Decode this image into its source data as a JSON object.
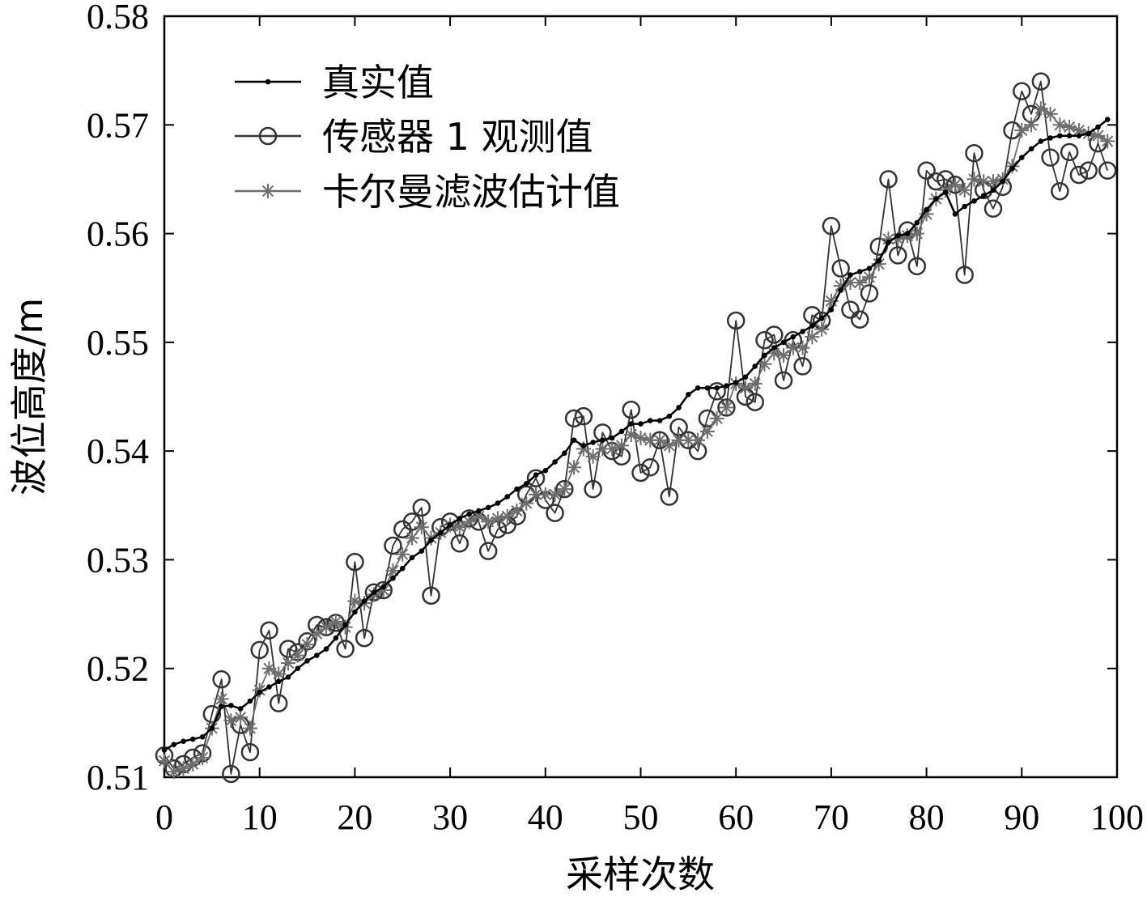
{
  "chart_data": {
    "type": "line",
    "xlabel": "采样次数",
    "ylabel": "波位高度/m",
    "xlim": [
      0,
      100
    ],
    "ylim": [
      0.51,
      0.58
    ],
    "xticks": [
      "0",
      "10",
      "20",
      "30",
      "40",
      "50",
      "60",
      "70",
      "80",
      "90",
      "100"
    ],
    "yticks": [
      "0.51",
      "0.52",
      "0.53",
      "0.54",
      "0.55",
      "0.56",
      "0.57",
      "0.58"
    ],
    "legend_position": "top-left",
    "grid": false,
    "x": [
      0,
      1,
      2,
      3,
      4,
      5,
      6,
      7,
      8,
      9,
      10,
      11,
      12,
      13,
      14,
      15,
      16,
      17,
      18,
      19,
      20,
      21,
      22,
      23,
      24,
      25,
      26,
      27,
      28,
      29,
      30,
      31,
      32,
      33,
      34,
      35,
      36,
      37,
      38,
      39,
      40,
      41,
      42,
      43,
      44,
      45,
      46,
      47,
      48,
      49,
      50,
      51,
      52,
      53,
      54,
      55,
      56,
      57,
      58,
      59,
      60,
      61,
      62,
      63,
      64,
      65,
      66,
      67,
      68,
      69,
      70,
      71,
      72,
      73,
      74,
      75,
      76,
      77,
      78,
      79,
      80,
      81,
      82,
      83,
      84,
      85,
      86,
      87,
      88,
      89,
      90,
      91,
      92,
      93,
      94,
      95,
      96,
      97,
      98,
      99
    ],
    "series": [
      {
        "name": "真实值",
        "color": "#000000",
        "marker": "dot",
        "values": [
          0.5125,
          0.513,
          0.5133,
          0.5135,
          0.5137,
          0.5145,
          0.5165,
          0.5166,
          0.5163,
          0.517,
          0.5178,
          0.5183,
          0.5188,
          0.5192,
          0.52,
          0.5207,
          0.5212,
          0.5218,
          0.5228,
          0.524,
          0.5252,
          0.5262,
          0.527,
          0.5275,
          0.5283,
          0.5292,
          0.5302,
          0.5308,
          0.5318,
          0.5325,
          0.5332,
          0.5338,
          0.5342,
          0.5345,
          0.5348,
          0.5352,
          0.5358,
          0.5365,
          0.537,
          0.5378,
          0.5382,
          0.539,
          0.5398,
          0.541,
          0.5405,
          0.5408,
          0.541,
          0.5412,
          0.5418,
          0.5425,
          0.5425,
          0.5428,
          0.5428,
          0.5432,
          0.544,
          0.5452,
          0.5458,
          0.5458,
          0.5458,
          0.546,
          0.5463,
          0.5468,
          0.5478,
          0.5488,
          0.5495,
          0.55,
          0.5505,
          0.551,
          0.5515,
          0.5522,
          0.553,
          0.5548,
          0.5562,
          0.5565,
          0.5568,
          0.5575,
          0.5592,
          0.5598,
          0.56,
          0.561,
          0.5622,
          0.5632,
          0.5638,
          0.5618,
          0.5625,
          0.563,
          0.5635,
          0.564,
          0.5648,
          0.566,
          0.567,
          0.5678,
          0.5685,
          0.5688,
          0.569,
          0.569,
          0.569,
          0.5692,
          0.5698,
          0.5705
        ]
      },
      {
        "name": "传感器 1 观测值",
        "color": "#333333",
        "marker": "circle",
        "values": [
          0.512,
          0.5108,
          0.5112,
          0.5118,
          0.5122,
          0.5158,
          0.519,
          0.5103,
          0.5148,
          0.5123,
          0.5217,
          0.5235,
          0.5168,
          0.5218,
          0.5215,
          0.5225,
          0.524,
          0.5238,
          0.5242,
          0.5218,
          0.5298,
          0.5228,
          0.527,
          0.5272,
          0.5313,
          0.5328,
          0.5335,
          0.5348,
          0.5267,
          0.533,
          0.5335,
          0.5315,
          0.5338,
          0.5335,
          0.5308,
          0.5328,
          0.5332,
          0.534,
          0.536,
          0.5375,
          0.5355,
          0.5343,
          0.5365,
          0.543,
          0.5432,
          0.5365,
          0.5417,
          0.54,
          0.5395,
          0.5438,
          0.538,
          0.5385,
          0.541,
          0.5358,
          0.5422,
          0.541,
          0.54,
          0.543,
          0.5455,
          0.544,
          0.552,
          0.545,
          0.5445,
          0.5502,
          0.5507,
          0.5465,
          0.5502,
          0.5478,
          0.5525,
          0.552,
          0.5607,
          0.5568,
          0.553,
          0.5521,
          0.5545,
          0.5588,
          0.565,
          0.558,
          0.5603,
          0.557,
          0.5658,
          0.5648,
          0.565,
          0.5645,
          0.5562,
          0.5674,
          0.564,
          0.5623,
          0.5643,
          0.5695,
          0.5731,
          0.571,
          0.574,
          0.567,
          0.5639,
          0.5675,
          0.5654,
          0.5658,
          0.5683,
          0.5658
        ]
      },
      {
        "name": "卡尔曼滤波估计值",
        "color": "#6e6e6e",
        "marker": "star",
        "values": [
          0.5115,
          0.5105,
          0.5108,
          0.5112,
          0.5118,
          0.5145,
          0.5172,
          0.5152,
          0.5155,
          0.5145,
          0.518,
          0.52,
          0.5195,
          0.5205,
          0.5212,
          0.5222,
          0.5232,
          0.5238,
          0.5243,
          0.5238,
          0.5262,
          0.526,
          0.5268,
          0.5272,
          0.529,
          0.5305,
          0.532,
          0.533,
          0.532,
          0.5325,
          0.5332,
          0.533,
          0.5335,
          0.534,
          0.5335,
          0.5338,
          0.534,
          0.5345,
          0.5352,
          0.536,
          0.536,
          0.536,
          0.5365,
          0.5385,
          0.5402,
          0.5395,
          0.5402,
          0.5402,
          0.5405,
          0.5415,
          0.5412,
          0.541,
          0.541,
          0.5405,
          0.541,
          0.541,
          0.541,
          0.5418,
          0.543,
          0.544,
          0.5462,
          0.5458,
          0.5462,
          0.548,
          0.549,
          0.5488,
          0.5495,
          0.5495,
          0.5505,
          0.5512,
          0.5538,
          0.5552,
          0.5555,
          0.5555,
          0.556,
          0.5572,
          0.5595,
          0.5595,
          0.5598,
          0.56,
          0.5618,
          0.5632,
          0.564,
          0.5645,
          0.564,
          0.565,
          0.5648,
          0.5648,
          0.565,
          0.5662,
          0.5695,
          0.57,
          0.5715,
          0.571,
          0.57,
          0.5698,
          0.5695,
          0.5692,
          0.569,
          0.5685
        ]
      }
    ]
  }
}
